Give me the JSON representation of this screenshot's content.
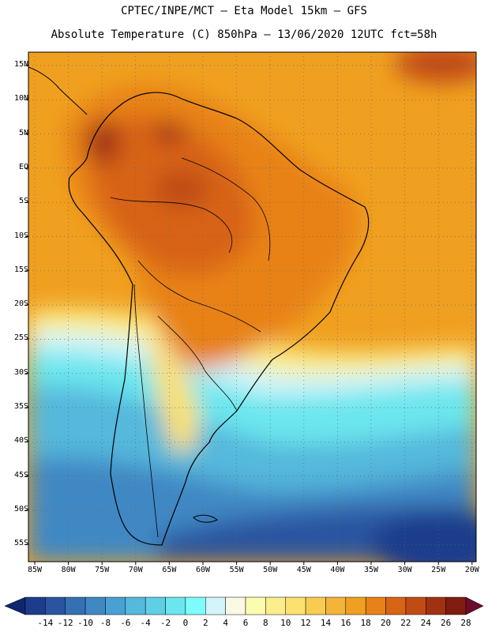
{
  "header": {
    "line1": "CPTEC/INPE/MCT –  Eta Model 15km – GFS",
    "line2": "Absolute Temperature (C) 850hPa – 13/06/2020 12UTC fct=58h"
  },
  "map": {
    "lat_labels": [
      "15N",
      "10N",
      "5N",
      "EQ",
      "5S",
      "10S",
      "15S",
      "20S",
      "25S",
      "30S",
      "35S",
      "40S",
      "45S",
      "50S",
      "55S"
    ],
    "lon_labels": [
      "85W",
      "80W",
      "75W",
      "70W",
      "65W",
      "60W",
      "55W",
      "50W",
      "45W",
      "40W",
      "35W",
      "30W",
      "25W",
      "20W"
    ]
  },
  "colorbar": {
    "labels": [
      "-14",
      "-12",
      "-10",
      "-8",
      "-6",
      "-4",
      "-2",
      "0",
      "2",
      "4",
      "6",
      "8",
      "10",
      "12",
      "14",
      "16",
      "18",
      "20",
      "22",
      "24",
      "26",
      "28"
    ],
    "colors": [
      "#1e3c8c",
      "#2a54a0",
      "#3570b4",
      "#3f88c4",
      "#4aa0d2",
      "#55b8dc",
      "#5fcfe6",
      "#6ce6ee",
      "#7efcfc",
      "#d2f4fa",
      "#fcf8e6",
      "#fcfcb0",
      "#fcee8c",
      "#fce070",
      "#f8cc50",
      "#f4b43a",
      "#f0a020",
      "#e88218",
      "#d86416",
      "#c04c14",
      "#a03212",
      "#801c10"
    ],
    "low_color": "#10266e",
    "high_color": "#6e0a2e"
  }
}
